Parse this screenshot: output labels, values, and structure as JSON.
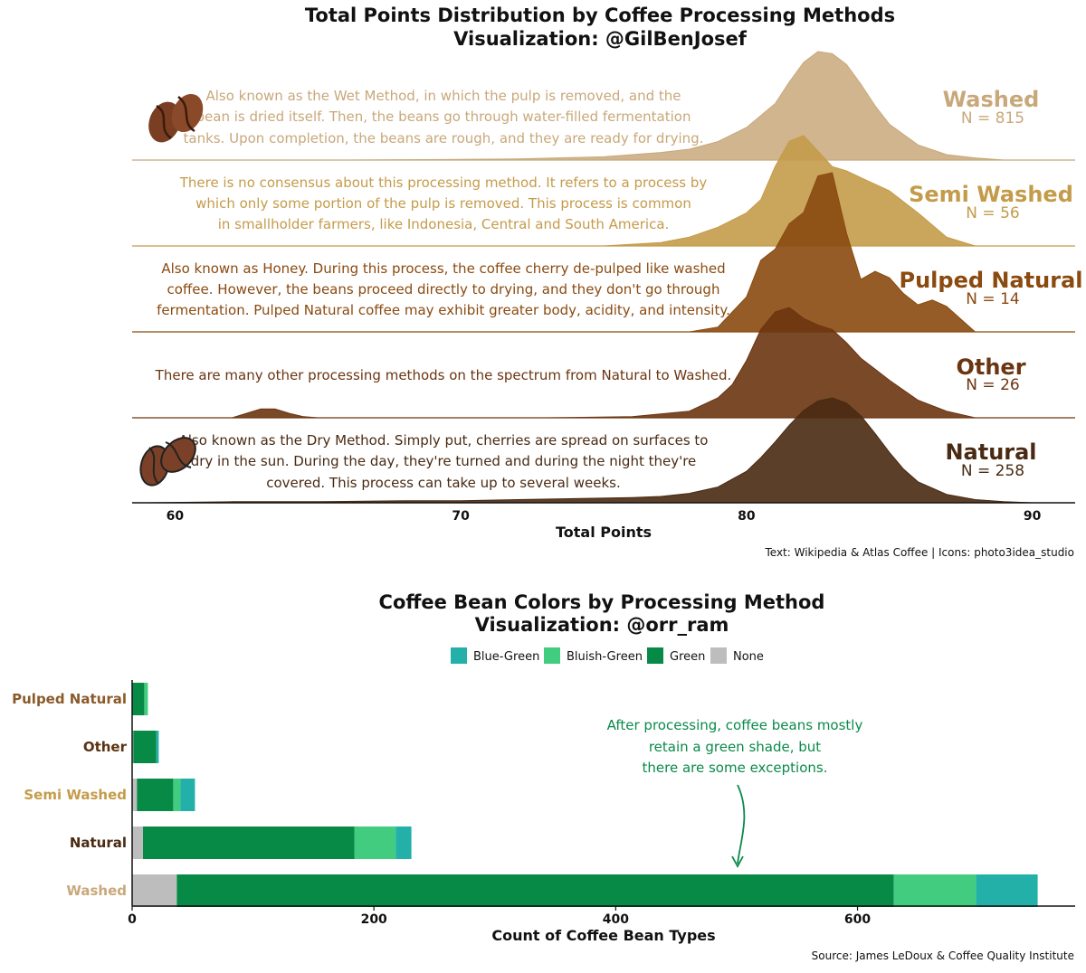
{
  "chart_data": [
    {
      "type": "area",
      "subtype": "ridgeline",
      "title": "Total Points Distribution by Coffee Processing Methods",
      "subtitle": "Visualization: @GilBenJosef",
      "xlabel": "Total Points",
      "xlim": [
        58.5,
        91.5
      ],
      "xticks": [
        60,
        70,
        80,
        90
      ],
      "caption": "Text: Wikipedia & Atlas Coffee | Icons: photo3idea_studio",
      "groups": [
        {
          "name": "Washed",
          "n_label": "N = 815",
          "color": "#c8a87a",
          "description": [
            "Also known as the Wet Method, in which the pulp is removed, and the",
            "bean is dried itself. Then, the beans go through water-filled fermentation",
            "tanks. Upon completion, the beans are rough, and they are ready for drying."
          ],
          "x": [
            66,
            72,
            75,
            77,
            78,
            79,
            80,
            81,
            81.5,
            82,
            82.5,
            83,
            83.5,
            84,
            84.5,
            85,
            86,
            87,
            88,
            89
          ],
          "density": [
            0.0,
            0.01,
            0.03,
            0.07,
            0.1,
            0.17,
            0.3,
            0.52,
            0.72,
            0.9,
            1.0,
            0.98,
            0.88,
            0.7,
            0.5,
            0.33,
            0.14,
            0.05,
            0.02,
            0.0
          ]
        },
        {
          "name": "Semi Washed",
          "n_label": "N = 56",
          "color": "#c49b4a",
          "description": [
            "There is no consensus about this processing method. It refers to a process by",
            "which only some portion of the pulp is removed. This process is common",
            "in smallholder farmers, like Indonesia, Central and South America."
          ],
          "x": [
            75,
            77,
            78,
            79,
            80,
            80.5,
            81,
            81.5,
            82,
            82.5,
            83,
            83.5,
            84,
            85,
            86,
            87,
            88
          ],
          "density": [
            0.0,
            0.03,
            0.08,
            0.17,
            0.3,
            0.42,
            0.72,
            0.95,
            1.0,
            0.86,
            0.72,
            0.68,
            0.62,
            0.5,
            0.3,
            0.08,
            0.0
          ]
        },
        {
          "name": "Pulped Natural",
          "n_label": "N = 14",
          "color": "#8a4a10",
          "description": [
            "Also known as Honey. During this process, the coffee cherry de-pulped like washed",
            "coffee. However, the beans proceed directly to drying, and they don't go through",
            "fermentation. Pulped Natural coffee may exhibit greater body, acidity, and intensity."
          ],
          "x": [
            78,
            79,
            80,
            80.5,
            81,
            81.5,
            82,
            82.5,
            83,
            83.5,
            84,
            84.5,
            85,
            85.5,
            86,
            86.5,
            87,
            88
          ],
          "density": [
            0.0,
            0.03,
            0.22,
            0.45,
            0.52,
            0.68,
            0.75,
            0.98,
            1.0,
            0.62,
            0.33,
            0.38,
            0.34,
            0.24,
            0.17,
            0.2,
            0.16,
            0.0
          ]
        },
        {
          "name": "Other",
          "n_label": "N = 26",
          "color": "#6b3511",
          "description": [
            "There are many other processing methods on the spectrum from Natural to Washed."
          ],
          "x": [
            62,
            62.5,
            63,
            63.5,
            64,
            64.5,
            65,
            73,
            76,
            78,
            79,
            79.5,
            80,
            80.5,
            81,
            81.5,
            82,
            82.5,
            83,
            83.5,
            84,
            84.5,
            85,
            86,
            87,
            88
          ],
          "density": [
            0.0,
            0.04,
            0.08,
            0.08,
            0.04,
            0.01,
            0.0,
            0.0,
            0.01,
            0.06,
            0.18,
            0.3,
            0.52,
            0.8,
            0.96,
            1.0,
            0.9,
            0.84,
            0.8,
            0.68,
            0.54,
            0.44,
            0.34,
            0.16,
            0.06,
            0.0
          ]
        },
        {
          "name": "Natural",
          "n_label": "N = 258",
          "color": "#4a2a12",
          "description": [
            "Also known as the Dry Method. Simply put, cherries are spread on surfaces to",
            "dry in the sun. During the day, they're turned and during the night they're",
            "covered. This process can take up to several weeks."
          ],
          "x": [
            59,
            62,
            65,
            68,
            70,
            72,
            74,
            76,
            77,
            78,
            79,
            80,
            80.5,
            81,
            81.5,
            82,
            82.5,
            83,
            83.5,
            84,
            84.5,
            85,
            85.5,
            86,
            87,
            88,
            89,
            90
          ],
          "density": [
            0.0,
            0.01,
            0.01,
            0.02,
            0.02,
            0.03,
            0.04,
            0.05,
            0.06,
            0.09,
            0.15,
            0.3,
            0.43,
            0.58,
            0.74,
            0.88,
            0.97,
            1.0,
            0.95,
            0.83,
            0.66,
            0.48,
            0.32,
            0.2,
            0.08,
            0.03,
            0.01,
            0.0
          ]
        }
      ]
    },
    {
      "type": "bar",
      "orientation": "horizontal",
      "stacked": true,
      "title": "Coffee Bean Colors by Processing Method",
      "subtitle": "Visualization: @orr_ram",
      "xlabel": "Count of Coffee Bean Types",
      "xlim": [
        0,
        780
      ],
      "xticks": [
        0,
        200,
        400,
        600
      ],
      "caption": "Source: James LeDoux & Coffee Quality Institute",
      "legend_position": "top",
      "categories": [
        "Pulped Natural",
        "Other",
        "Semi Washed",
        "Natural",
        "Washed"
      ],
      "category_colors": [
        "#8a5a2a",
        "#5a3312",
        "#c49b4a",
        "#4a2a12",
        "#c8a87a"
      ],
      "series": [
        {
          "name": "None",
          "color": "#bdbdbd",
          "values": [
            0,
            1,
            4,
            9,
            37
          ]
        },
        {
          "name": "Green",
          "color": "#068a45",
          "values": [
            10,
            19,
            30,
            175,
            593
          ]
        },
        {
          "name": "Bluish-Green",
          "color": "#42cc80",
          "values": [
            3,
            0,
            6,
            34,
            68
          ]
        },
        {
          "name": "Blue-Green",
          "color": "#22b0a8",
          "values": [
            0,
            2,
            12,
            13,
            51
          ]
        }
      ],
      "legend_order": [
        "Blue-Green",
        "Bluish-Green",
        "Green",
        "None"
      ],
      "annotation": [
        "After processing, coffee beans mostly",
        "retain a green shade, but",
        "there are some exceptions."
      ]
    }
  ]
}
